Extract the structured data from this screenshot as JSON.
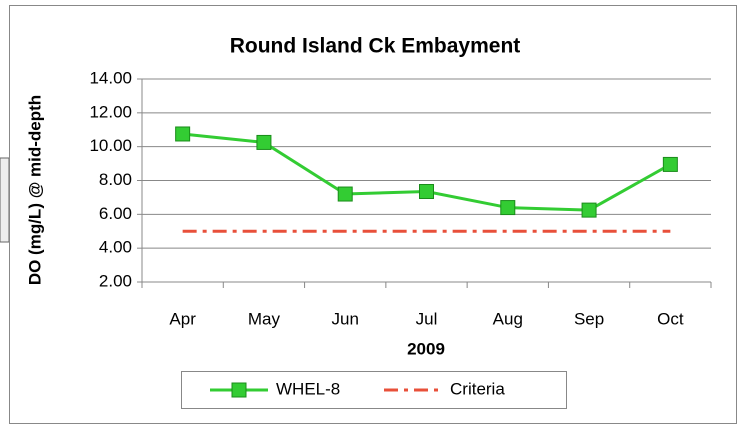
{
  "chart_data": {
    "type": "line",
    "title": "Round Island Ck Embayment",
    "x_label": "2009",
    "y_label": "DO (mg/L) @ mid-depth",
    "categories": [
      "Apr",
      "May",
      "Jun",
      "Jul",
      "Aug",
      "Sep",
      "Oct"
    ],
    "series": [
      {
        "name": "WHEL-8",
        "color": "#33cc33",
        "values": [
          10.75,
          10.25,
          7.2,
          7.35,
          6.4,
          6.25,
          8.95
        ]
      },
      {
        "name": "Criteria",
        "color": "#e8503a",
        "values": [
          5,
          5,
          5,
          5,
          5,
          5,
          5
        ]
      }
    ],
    "ylim": [
      2,
      14
    ],
    "yticks": [
      {
        "value": 2,
        "label": "2.00"
      },
      {
        "value": 4,
        "label": "4.00"
      },
      {
        "value": 6,
        "label": "6.00"
      },
      {
        "value": 8,
        "label": "8.00"
      },
      {
        "value": 10,
        "label": "10.00"
      },
      {
        "value": 12,
        "label": "12.00"
      },
      {
        "value": 14,
        "label": "14.00"
      }
    ],
    "grid": true,
    "legend": "bottom"
  }
}
